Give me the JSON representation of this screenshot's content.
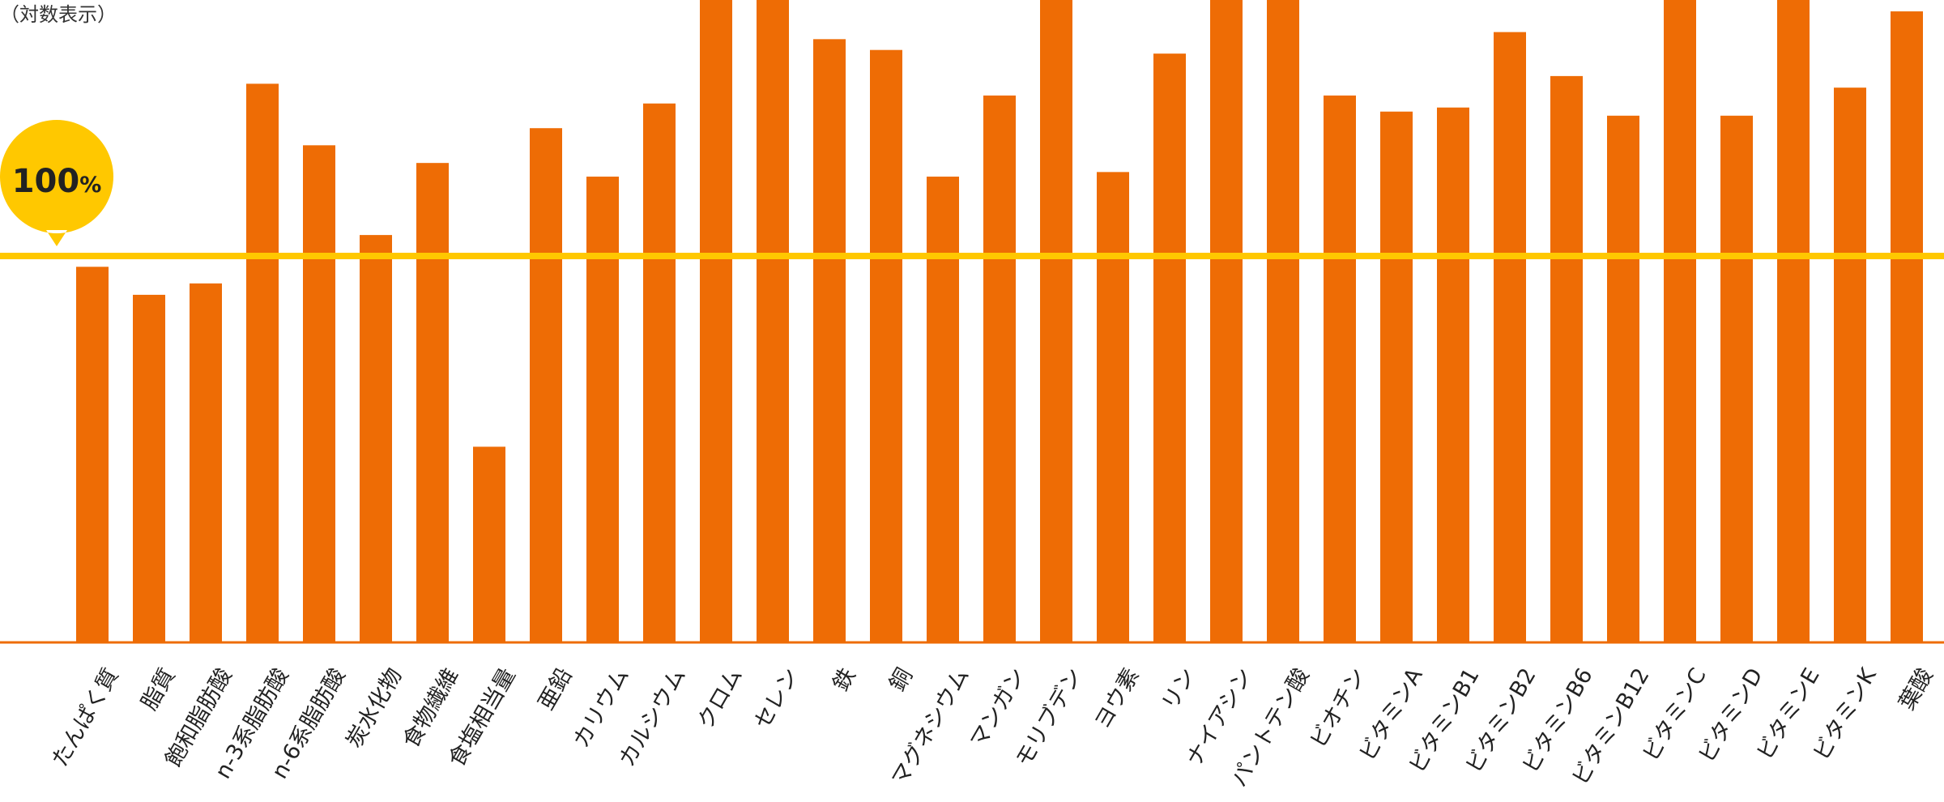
{
  "chart_data": {
    "type": "bar",
    "scale_note": "（対数表示）",
    "log_scale": true,
    "grid": false,
    "reference_line": {
      "value": 100,
      "label_value": "100",
      "label_unit": "%"
    },
    "categories": [
      "たんぱく質",
      "脂質",
      "飽和脂肪酸",
      "n-3系脂肪酸",
      "n-6系脂肪酸",
      "炭水化物",
      "食物繊維",
      "食塩相当量",
      "亜鉛",
      "カリウム",
      "カルシウム",
      "クロム",
      "セレン",
      "鉄",
      "銅",
      "マグネシウム",
      "マンガン",
      "モリブデン",
      "ヨウ素",
      "リン",
      "ナイアシン",
      "パントテン酸",
      "ビオチン",
      "ビタミンA",
      "ビタミンB1",
      "ビタミンB2",
      "ビタミンB6",
      "ビタミンB12",
      "ビタミンC",
      "ビタミンD",
      "ビタミンE",
      "ビタミンK",
      "葉酸"
    ],
    "values": [
      98,
      93,
      95,
      138,
      123,
      104,
      119,
      70,
      127,
      116,
      133,
      188,
      188,
      150,
      147,
      116,
      135,
      198,
      117,
      146,
      185,
      186,
      135,
      131,
      132,
      152,
      140,
      130,
      480,
      130,
      216,
      137,
      158
    ],
    "bar_color": "#EE6C05",
    "reference_color": "#FFC800",
    "axis_color": "#EE6C05"
  }
}
